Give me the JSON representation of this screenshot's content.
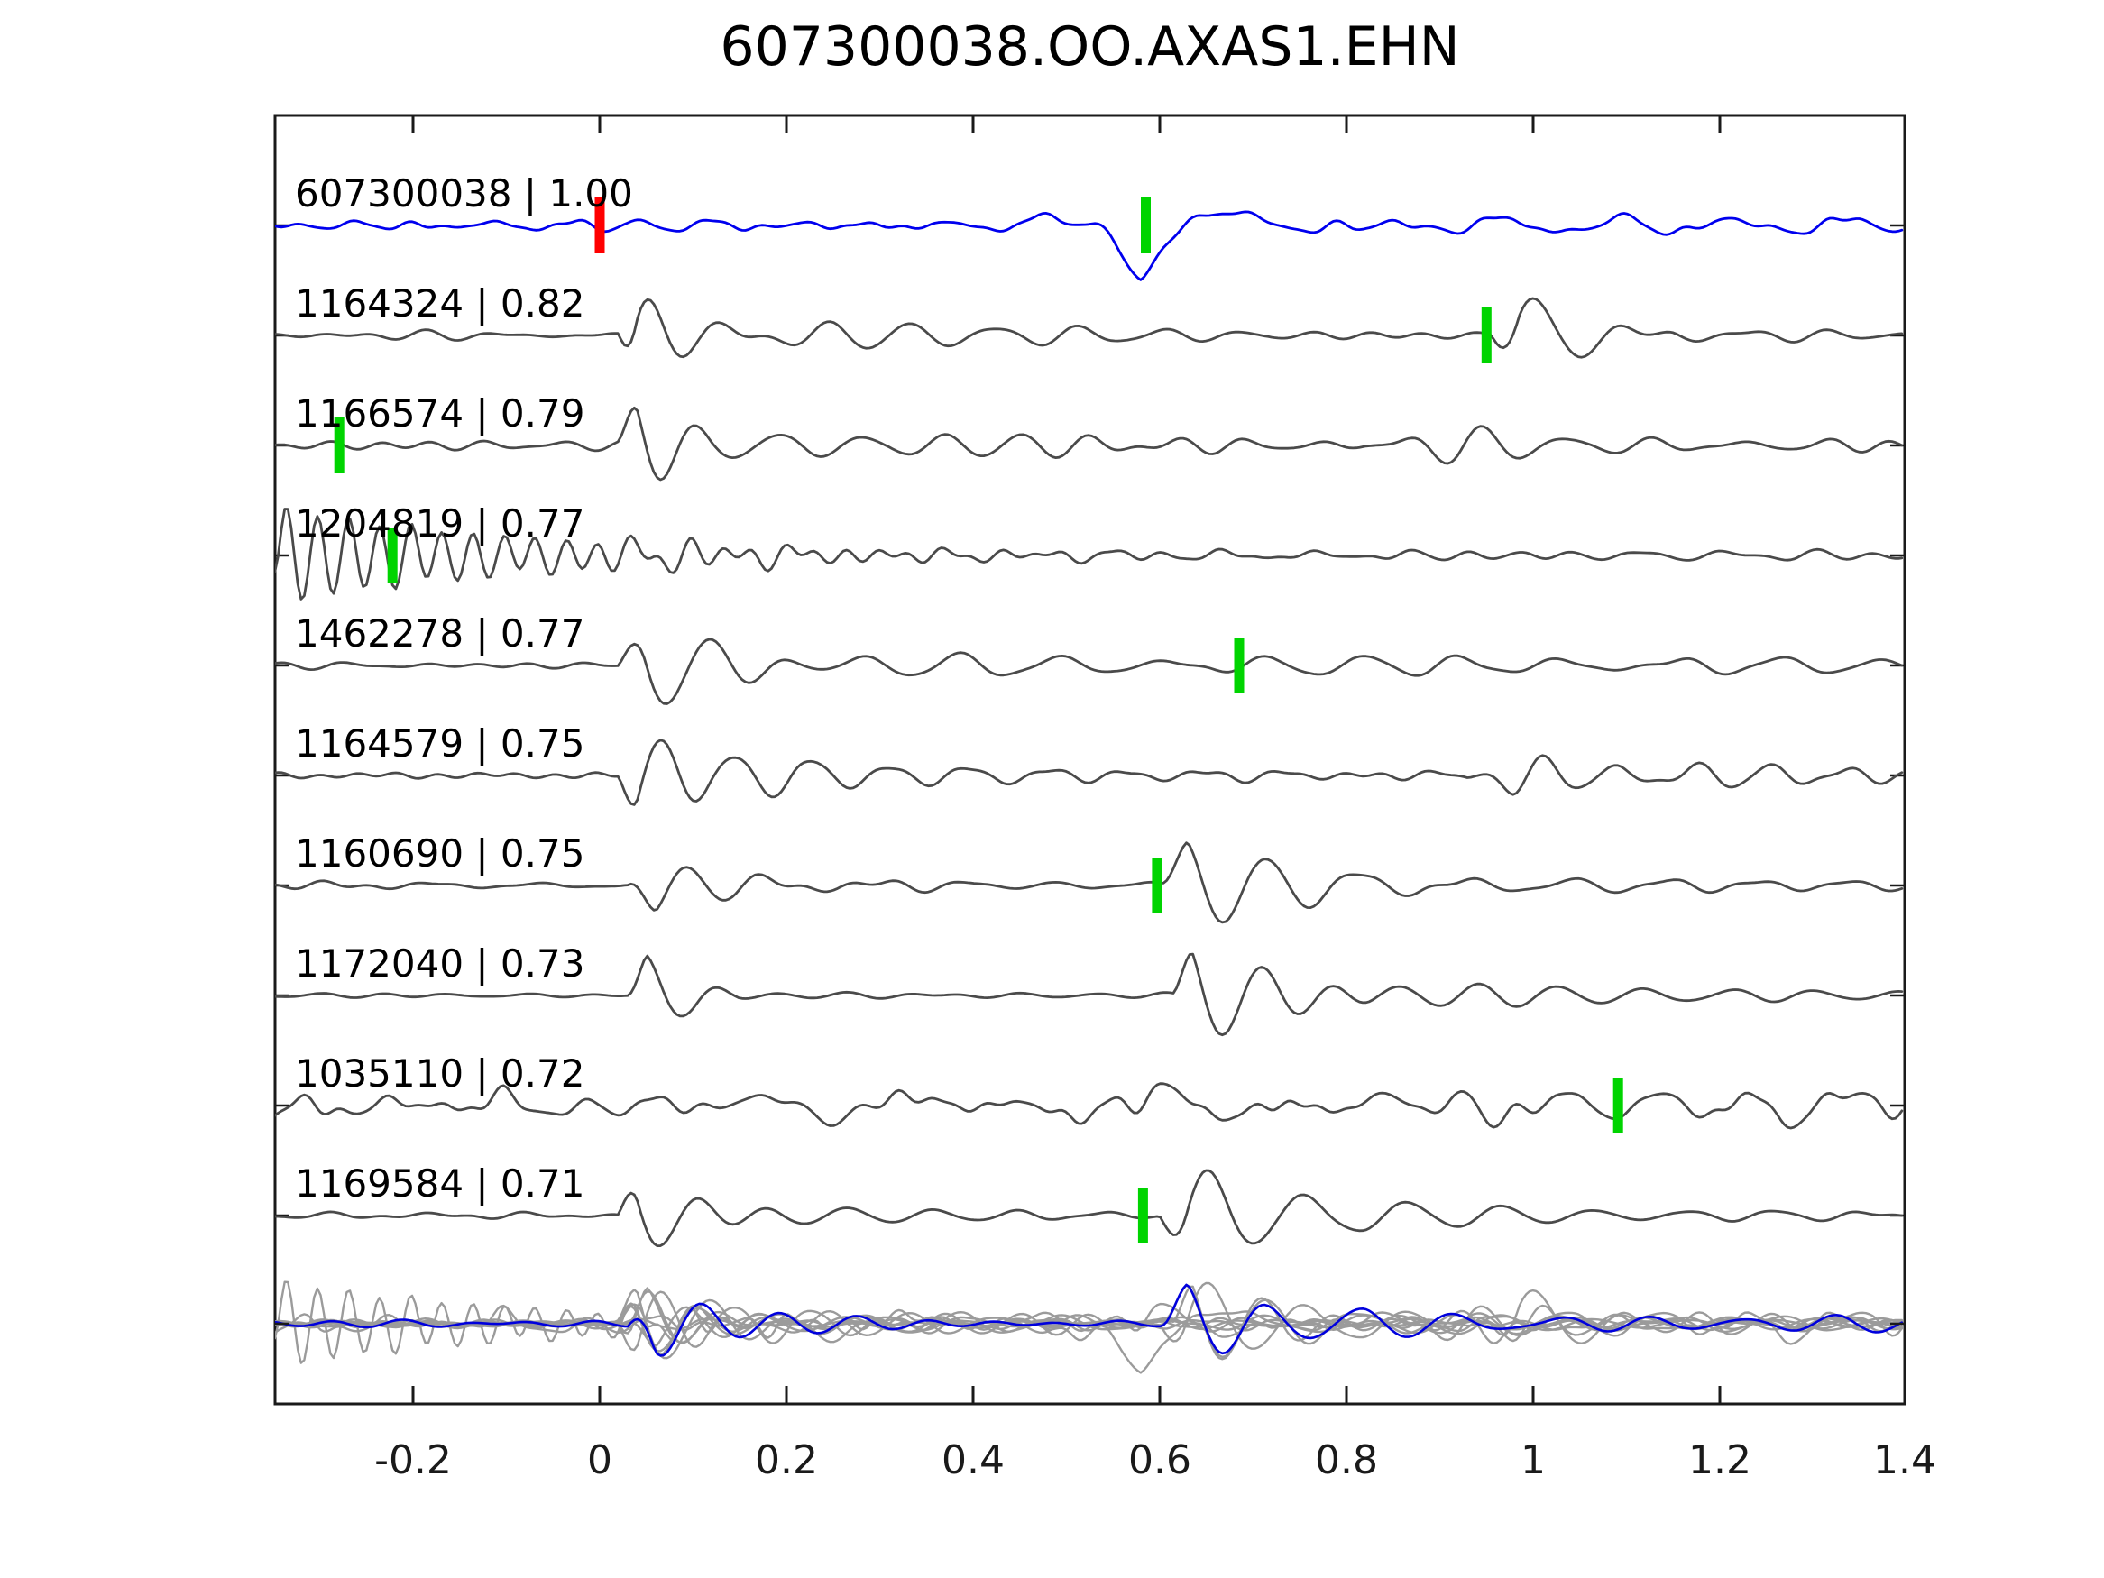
{
  "title": "607300038.OO.AXAS1.EHN",
  "colors": {
    "background": "#ffffff",
    "axis": "#1a1a1a",
    "text": "#000000",
    "template_trace": "#0000ee",
    "detection_trace": "#4a4a4a",
    "overlay_gray": "#9b9b9b",
    "overlay_blue": "#0000dd",
    "pick_green": "#00d400",
    "pick_red": "#ff0000"
  },
  "x_axis": {
    "min": -0.348,
    "max": 1.398,
    "ticks": [
      {
        "label": "-0.2",
        "value": -0.2
      },
      {
        "label": "0",
        "value": 0.0
      },
      {
        "label": "0.2",
        "value": 0.2
      },
      {
        "label": "0.4",
        "value": 0.4
      },
      {
        "label": "0.6",
        "value": 0.6
      },
      {
        "label": "0.8",
        "value": 0.8
      },
      {
        "label": "1",
        "value": 1.0
      },
      {
        "label": "1.2",
        "value": 1.2
      },
      {
        "label": "1.4",
        "value": 1.4
      }
    ]
  },
  "overlay": {
    "scale": 0.9,
    "synth_blue": {
      "seed": 7,
      "noises": [
        {
          "amp": 7,
          "f": 14
        }
      ],
      "bursts": [
        {
          "t": 0.03,
          "amp": 42,
          "f": 12,
          "decay": 0.1,
          "rise": 0.03
        },
        {
          "t": 0.6,
          "amp": 46,
          "f": 11,
          "decay": 0.12,
          "rise": 0.03
        },
        {
          "t": 0.72,
          "amp": 12,
          "f": 10,
          "decay": 0.4,
          "rise": 0.1
        }
      ]
    }
  },
  "chart_data": {
    "type": "line",
    "title": "607300038.OO.AXAS1.EHN",
    "xlabel": "",
    "ylabel": "",
    "x_range": [
      -0.348,
      1.398
    ],
    "x_tick_labels": [
      "-0.2",
      "0",
      "0.2",
      "0.4",
      "0.6",
      "0.8",
      "1",
      "1.2",
      "1.4"
    ],
    "grid": false,
    "legend": false,
    "series": [
      {
        "label": "607300038 | 1.00",
        "id": "607300038",
        "correlation": 1.0,
        "role": "template",
        "color": "#0000ee",
        "picks": [
          {
            "color": "#ff0000",
            "t": 0.0
          },
          {
            "color": "#00d400",
            "t": 0.585
          }
        ],
        "synth": {
          "seed": 11,
          "noises": [
            {
              "amp": 8,
              "f": 12
            },
            {
              "amp": 5,
              "f": 24
            }
          ],
          "bursts": [
            {
              "t": 0.53,
              "amp": 48,
              "f": 4.5,
              "decay": 0.08,
              "rise": 0.05,
              "phase": 3.3
            },
            {
              "t": 0.4,
              "amp": 10,
              "f": 6,
              "decay": 0.3,
              "rise": 0.1
            },
            {
              "t": 0.85,
              "amp": 9,
              "f": 8,
              "decay": 0.6,
              "rise": 0.2
            }
          ]
        }
      },
      {
        "label": "1164324 | 0.82",
        "id": "1164324",
        "correlation": 0.82,
        "role": "detection",
        "color": "#4a4a4a",
        "picks": [
          {
            "color": "#00d400",
            "t": 0.95
          }
        ],
        "synth": {
          "seed": 22,
          "noises": [
            {
              "amp": 9,
              "f": 16
            }
          ],
          "bursts": [
            {
              "t": 0.02,
              "amp": 52,
              "f": 14,
              "decay": 0.07,
              "rise": 0.02
            },
            {
              "t": 0.1,
              "amp": 13,
              "f": 11,
              "decay": 0.45,
              "rise": 0.08
            },
            {
              "t": 0.955,
              "amp": 50,
              "f": 10,
              "decay": 0.09,
              "rise": 0.03
            },
            {
              "t": 1.05,
              "amp": 12,
              "f": 12,
              "decay": 0.3,
              "rise": 0.1
            }
          ]
        }
      },
      {
        "label": "1166574 | 0.79",
        "id": "1166574",
        "correlation": 0.79,
        "role": "detection",
        "color": "#4a4a4a",
        "picks": [
          {
            "color": "#00d400",
            "t": -0.279
          }
        ],
        "synth": {
          "seed": 33,
          "noises": [
            {
              "amp": 9,
              "f": 15
            }
          ],
          "bursts": [
            {
              "t": 0.02,
              "amp": 50,
              "f": 14,
              "decay": 0.08,
              "rise": 0.02
            },
            {
              "t": 0.12,
              "amp": 14,
              "f": 12,
              "decay": 0.4,
              "rise": 0.1
            },
            {
              "t": 0.82,
              "amp": 15,
              "f": 11,
              "decay": 0.3,
              "rise": 0.1
            }
          ]
        }
      },
      {
        "label": "1204819 | 0.77",
        "id": "1204819",
        "correlation": 0.77,
        "role": "detection",
        "color": "#4a4a4a",
        "picks": [
          {
            "color": "#00d400",
            "t": -0.222
          }
        ],
        "synth": {
          "seed": 44,
          "noises": [
            {
              "amp": 8,
              "f": 14
            }
          ],
          "bursts": [
            {
              "t": -0.36,
              "amp": 52,
              "f": 30,
              "decay": 0.27,
              "rise": 0.02
            },
            {
              "t": 0.0,
              "amp": 14,
              "f": 18,
              "decay": 0.3,
              "rise": 0.05
            }
          ]
        }
      },
      {
        "label": "1462278 | 0.77",
        "id": "1462278",
        "correlation": 0.77,
        "role": "detection",
        "color": "#4a4a4a",
        "picks": [
          {
            "color": "#00d400",
            "t": 0.685
          }
        ],
        "synth": {
          "seed": 55,
          "noises": [
            {
              "amp": 8,
              "f": 14
            }
          ],
          "bursts": [
            {
              "t": 0.02,
              "amp": 54,
              "f": 11,
              "decay": 0.1,
              "rise": 0.03
            },
            {
              "t": 0.15,
              "amp": 11,
              "f": 9,
              "decay": 0.5,
              "rise": 0.1
            },
            {
              "t": 0.6,
              "amp": 10,
              "f": 9,
              "decay": 0.4,
              "rise": 0.15
            }
          ]
        }
      },
      {
        "label": "1164579 | 0.75",
        "id": "1164579",
        "correlation": 0.75,
        "role": "detection",
        "color": "#4a4a4a",
        "picks": [],
        "synth": {
          "seed": 66,
          "noises": [
            {
              "amp": 9,
              "f": 16
            }
          ],
          "bursts": [
            {
              "t": 0.02,
              "amp": 55,
              "f": 13,
              "decay": 0.09,
              "rise": 0.02
            },
            {
              "t": 0.12,
              "amp": 13,
              "f": 12,
              "decay": 0.45,
              "rise": 0.08
            },
            {
              "t": 0.93,
              "amp": 24,
              "f": 13,
              "decay": 0.15,
              "rise": 0.05
            },
            {
              "t": 1.1,
              "amp": 12,
              "f": 13,
              "decay": 0.3,
              "rise": 0.1
            }
          ]
        }
      },
      {
        "label": "1160690 | 0.75",
        "id": "1160690",
        "correlation": 0.75,
        "role": "detection",
        "color": "#4a4a4a",
        "picks": [
          {
            "color": "#00d400",
            "t": 0.597
          }
        ],
        "synth": {
          "seed": 77,
          "noises": [
            {
              "amp": 6,
              "f": 15
            }
          ],
          "bursts": [
            {
              "t": 0.03,
              "amp": 32,
              "f": 13,
              "decay": 0.09,
              "rise": 0.03
            },
            {
              "t": 0.12,
              "amp": 8,
              "f": 10,
              "decay": 0.35,
              "rise": 0.1
            },
            {
              "t": 0.6,
              "amp": 55,
              "f": 11,
              "decay": 0.14,
              "rise": 0.03
            },
            {
              "t": 0.72,
              "amp": 13,
              "f": 10,
              "decay": 0.5,
              "rise": 0.15
            }
          ]
        }
      },
      {
        "label": "1172040 | 0.73",
        "id": "1172040",
        "correlation": 0.73,
        "role": "detection",
        "color": "#4a4a4a",
        "picks": [],
        "synth": {
          "seed": 88,
          "noises": [
            {
              "amp": 3.5,
              "f": 15
            }
          ],
          "bursts": [
            {
              "t": 0.03,
              "amp": 44,
              "f": 12,
              "decay": 0.06,
              "rise": 0.02
            },
            {
              "t": 0.1,
              "amp": 7,
              "f": 12,
              "decay": 0.25,
              "rise": 0.05
            },
            {
              "t": 0.615,
              "amp": 60,
              "f": 12,
              "decay": 0.12,
              "rise": 0.02
            },
            {
              "t": 0.73,
              "amp": 15,
              "f": 11,
              "decay": 0.4,
              "rise": 0.1
            }
          ]
        }
      },
      {
        "label": "1035110 | 0.72",
        "id": "1035110",
        "correlation": 0.72,
        "role": "detection",
        "color": "#4a4a4a",
        "picks": [
          {
            "color": "#00d400",
            "t": 1.091
          }
        ],
        "synth": {
          "seed": 99,
          "noises": [
            {
              "amp": 24,
              "f": 8
            },
            {
              "amp": 14,
              "f": 18
            },
            {
              "amp": 6,
              "f": 30
            }
          ],
          "bursts": [
            {
              "t": 0.9,
              "amp": 12,
              "f": 10,
              "decay": 0.4,
              "rise": 0.2
            }
          ]
        }
      },
      {
        "label": "1169584 | 0.71",
        "id": "1169584",
        "correlation": 0.71,
        "role": "detection",
        "color": "#4a4a4a",
        "picks": [
          {
            "color": "#00d400",
            "t": 0.582
          }
        ],
        "synth": {
          "seed": 110,
          "noises": [
            {
              "amp": 5,
              "f": 15
            }
          ],
          "bursts": [
            {
              "t": 0.02,
              "amp": 50,
              "f": 12,
              "decay": 0.08,
              "rise": 0.02
            },
            {
              "t": 0.1,
              "amp": 8,
              "f": 10,
              "decay": 0.35,
              "rise": 0.1
            },
            {
              "t": 0.6,
              "amp": 56,
              "f": 10,
              "decay": 0.11,
              "rise": 0.03
            },
            {
              "t": 0.72,
              "amp": 11,
              "f": 10,
              "decay": 0.4,
              "rise": 0.1
            }
          ]
        }
      }
    ]
  }
}
